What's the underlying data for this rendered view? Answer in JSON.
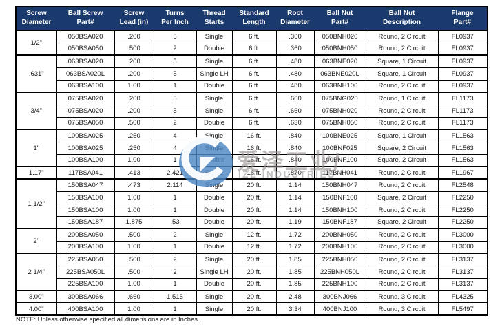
{
  "table": {
    "headers": [
      [
        "Screw",
        "Diameter"
      ],
      [
        "Ball Screw",
        "Part#"
      ],
      [
        "Screw",
        "Lead (in)"
      ],
      [
        "Turns",
        "Per Inch"
      ],
      [
        "Thread",
        "Starts"
      ],
      [
        "Standard",
        "Length"
      ],
      [
        "Root",
        "Diameter"
      ],
      [
        "Ball Nut",
        "Part#"
      ],
      [
        "Ball Nut",
        "Description"
      ],
      [
        "Flange",
        "Part#"
      ]
    ],
    "groups": [
      {
        "diameter": "1/2\"",
        "rows": [
          [
            "050BSA020",
            ".200",
            "5",
            "Single",
            "6 ft.",
            ".360",
            "050BNH020",
            "Round, 2 Circuit",
            "FL0937"
          ],
          [
            "050BSA050",
            ".500",
            "2",
            "Double",
            "6 ft.",
            ".360",
            "050BNH050",
            "Round, 2 Circuit",
            "FL0937"
          ]
        ]
      },
      {
        "diameter": ".631\"",
        "rows": [
          [
            "063BSA020",
            ".200",
            "5",
            "Single",
            "6 ft.",
            ".480",
            "063BNE020",
            "Square, 1 Circuit",
            "FL0937"
          ],
          [
            "063BSA020L",
            ".200",
            "5",
            "Single LH",
            "6 ft.",
            ".480",
            "063BNE020L",
            "Square, 1 Circuit",
            "FL0937"
          ],
          [
            "063BSA100",
            "1.00",
            "1",
            "Double",
            "6 ft.",
            ".480",
            "063BNH100",
            "Round, 2 Circuit",
            "FL0937"
          ]
        ]
      },
      {
        "diameter": "3/4\"",
        "rows": [
          [
            "075BSA020",
            ".200",
            "5",
            "Single",
            "6 ft.",
            ".660",
            "075BNG020",
            "Round, 1 Circuit",
            "FL1173"
          ],
          [
            "075BSA020",
            ".200",
            "5",
            "Single",
            "6 ft.",
            ".660",
            "075BNH020",
            "Round, 2 Circuit",
            "FL1173"
          ],
          [
            "075BSA050",
            ".500",
            "2",
            "Double",
            "6 ft.",
            ".630",
            "075BNH050",
            "Round, 2 Circuit",
            "FL1173"
          ]
        ]
      },
      {
        "diameter": "1\"",
        "rows": [
          [
            "100BSA025",
            ".250",
            "4",
            "Single",
            "16 ft.",
            ".840",
            "100BNE025",
            "Square, 1 Circuit",
            "FL1563"
          ],
          [
            "100BSA025",
            ".250",
            "4",
            "Single",
            "16 ft.",
            ".840",
            "100BNF025",
            "Square, 2 Circuit",
            "FL1563"
          ],
          [
            "100BSA100",
            "1.00",
            "1",
            "Double",
            "16 ft.",
            ".840",
            "100BNF100",
            "Square, 2 Circuit",
            "FL1563"
          ]
        ]
      },
      {
        "diameter": "1.17\"",
        "rows": [
          [
            "117BSA041",
            ".413",
            "2.421",
            "Single",
            "16 ft.",
            ".870",
            "117BNH041",
            "Round, 2 Circuit",
            "FL1967"
          ]
        ]
      },
      {
        "diameter": "1 1/2\"",
        "rows": [
          [
            "150BSA047",
            ".473",
            "2.114",
            "Single",
            "20 ft.",
            "1.14",
            "150BNH047",
            "Round, 2 Circuit",
            "FL2548"
          ],
          [
            "150BSA100",
            "1.00",
            "1",
            "Double",
            "20 ft.",
            "1.14",
            "150BNF100",
            "Square, 2 Circuit",
            "FL2250"
          ],
          [
            "150BSA100",
            "1.00",
            "1",
            "Double",
            "20 ft.",
            "1.14",
            "150BNH100",
            "Round, 2 Circuit",
            "FL2250"
          ],
          [
            "150BSA187",
            "1.875",
            ".53",
            "Double",
            "20 ft.",
            "1.19",
            "150BNF187",
            "Square, 2 Circuit",
            "FL2250"
          ]
        ]
      },
      {
        "diameter": "2\"",
        "rows": [
          [
            "200BSA050",
            ".500",
            "2",
            "Single",
            "12 ft.",
            "1.72",
            "200BNH050",
            "Round, 2 Circuit",
            "FL3000"
          ],
          [
            "200BSA100",
            "1.00",
            "1",
            "Double",
            "12 ft.",
            "1.72",
            "200BNH100",
            "Round, 2 Circuit",
            "FL3000"
          ]
        ]
      },
      {
        "diameter": "2 1/4\"",
        "rows": [
          [
            "225BSA050",
            ".500",
            "2",
            "Single",
            "20 ft.",
            "1.85",
            "225BNH050",
            "Round, 2 Circuit",
            "FL3137"
          ],
          [
            "225BSA050L",
            ".500",
            "2",
            "Single LH",
            "20 ft.",
            "1.85",
            "225BNH050L",
            "Round, 2 Circuit",
            "FL3137"
          ],
          [
            "225BSA100",
            "1.00",
            "1",
            "Double",
            "20 ft.",
            "1.85",
            "225BNH100",
            "Round, 2 Circuit",
            "FL3137"
          ]
        ]
      },
      {
        "diameter": "3.00\"",
        "rows": [
          [
            "300BSA066",
            ".660",
            "1.515",
            "Single",
            "20 ft.",
            "2.48",
            "300BNJ066",
            "Round, 3 Circuit",
            "FL4325"
          ]
        ]
      },
      {
        "diameter": "4.00\"",
        "rows": [
          [
            "400BSA100",
            "1.00",
            "1",
            "Single",
            "20 ft.",
            "3.34",
            "400BNJ100",
            "Round, 3 Circuit",
            "FL5497"
          ]
        ]
      }
    ]
  },
  "note": "NOTE:  Unless otherwise specified all dimensions are in Inches.",
  "watermark": {
    "cn": "爱泽工业/",
    "en": "IZE INDUSTRIES"
  },
  "colors": {
    "header_bg": "#1a3a6d",
    "header_text": "#ffffff",
    "border": "#000000",
    "logo_blue": "#4d86c4"
  }
}
